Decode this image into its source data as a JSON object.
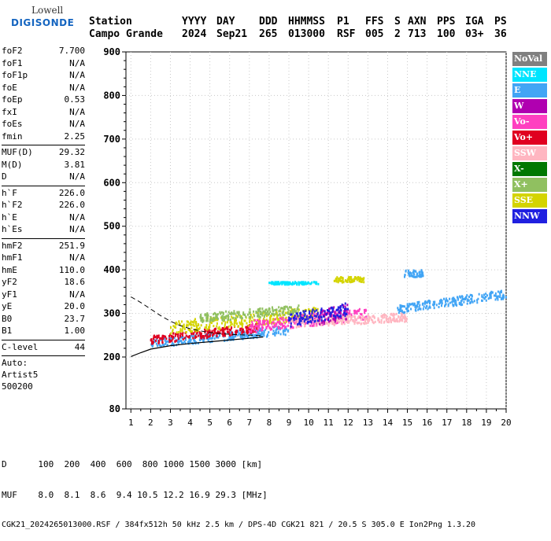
{
  "logo": {
    "top": "Lowell",
    "bottom": "DIGISONDE"
  },
  "header": {
    "labels": [
      "Station",
      "YYYY",
      "DAY",
      "DDD",
      "HHMMSS",
      "P1",
      "FFS",
      "S",
      "AXN",
      "PPS",
      "IGA",
      "PS"
    ],
    "values": [
      "Campo Grande",
      "2024",
      "Sep21",
      "265",
      "013000",
      "RSF",
      "005",
      "2",
      "713",
      "100",
      "03+",
      "36"
    ]
  },
  "params": [
    {
      "k": "foF2",
      "v": "7.700"
    },
    {
      "k": "foF1",
      "v": "N/A"
    },
    {
      "k": "foF1p",
      "v": "N/A"
    },
    {
      "k": "foE",
      "v": "N/A"
    },
    {
      "k": "foEp",
      "v": "0.53"
    },
    {
      "k": "fxI",
      "v": "N/A"
    },
    {
      "k": "foEs",
      "v": "N/A"
    },
    {
      "k": "fmin",
      "v": "2.25"
    },
    {
      "sep": true
    },
    {
      "k": "MUF(D)",
      "v": "29.32"
    },
    {
      "k": "M(D)",
      "v": "3.81"
    },
    {
      "k": "D",
      "v": "N/A"
    },
    {
      "sep": true
    },
    {
      "k": "h`F",
      "v": "226.0"
    },
    {
      "k": "h`F2",
      "v": "226.0"
    },
    {
      "k": "h`E",
      "v": "N/A"
    },
    {
      "k": "h`Es",
      "v": "N/A"
    },
    {
      "sep": true
    },
    {
      "k": "hmF2",
      "v": "251.9"
    },
    {
      "k": "hmF1",
      "v": "N/A"
    },
    {
      "k": "hmE",
      "v": "110.0"
    },
    {
      "k": "yF2",
      "v": "18.6"
    },
    {
      "k": "yF1",
      "v": "N/A"
    },
    {
      "k": "yE",
      "v": "20.0"
    },
    {
      "k": "B0",
      "v": "23.7"
    },
    {
      "k": "B1",
      "v": "1.00"
    },
    {
      "sep": true
    },
    {
      "k": "C-level",
      "v": "44"
    },
    {
      "sep": true
    },
    {
      "line": "Auto:"
    },
    {
      "line": "Artist5"
    },
    {
      "line": "500200"
    }
  ],
  "legend": [
    {
      "label": "NoVal",
      "color": "#808080"
    },
    {
      "label": "NNE",
      "color": "#00e5ff"
    },
    {
      "label": "E",
      "color": "#42a5f5"
    },
    {
      "label": "W",
      "color": "#b000b0"
    },
    {
      "label": "Vo-",
      "color": "#ff40c0"
    },
    {
      "label": "Vo+",
      "color": "#e00020"
    },
    {
      "label": "SSW",
      "color": "#ffb6c1"
    },
    {
      "label": "X-",
      "color": "#007800"
    },
    {
      "label": "X+",
      "color": "#90c060"
    },
    {
      "label": "SSE",
      "color": "#d4d400"
    },
    {
      "label": "NNW",
      "color": "#2020e0"
    }
  ],
  "footer": {
    "row1_label": "D",
    "distances": [
      "100",
      "200",
      "400",
      "600",
      "800",
      "1000",
      "1500",
      "3000"
    ],
    "row1_unit": "[km]",
    "row2_label": "MUF",
    "mufs": [
      "8.0",
      "8.1",
      "8.6",
      "9.4",
      "10.5",
      "12.2",
      "16.9",
      "29.3"
    ],
    "row2_unit": "[MHz]",
    "info": "CGK21_2024265013000.RSF / 384fx512h 50 kHz 2.5 km / DPS-4D CGK21 821 / 20.5 S 305.0 E Ion2Png 1.3.20"
  },
  "chart_data": {
    "type": "scatter",
    "title": "",
    "xlabel": "",
    "ylabel": "",
    "xlim": [
      0.75,
      20
    ],
    "ylim": [
      80,
      900
    ],
    "xticks": [
      1,
      2,
      3,
      4,
      5,
      6,
      7,
      8,
      9,
      10,
      11,
      12,
      13,
      14,
      15,
      16,
      17,
      18,
      19,
      20
    ],
    "yticks": [
      80,
      200,
      300,
      400,
      500,
      600,
      700,
      800,
      900
    ],
    "grid": true,
    "legend_position": "right",
    "echo_bands": [
      {
        "name": "E",
        "x_range": [
          2.0,
          9.0
        ],
        "h_start": 232,
        "h_end": 262,
        "spread": 10
      },
      {
        "name": "Vo+",
        "x_range": [
          2.0,
          7.5
        ],
        "h_start": 240,
        "h_end": 268,
        "spread": 10
      },
      {
        "name": "SSE",
        "x_range": [
          3.0,
          10.5
        ],
        "h_start": 268,
        "h_end": 302,
        "spread": 14
      },
      {
        "name": "Vo-",
        "x_range": [
          7.0,
          13.0
        ],
        "h_start": 270,
        "h_end": 300,
        "spread": 14
      },
      {
        "name": "SSW",
        "x_range": [
          9.0,
          15.0
        ],
        "h_start": 278,
        "h_end": 292,
        "spread": 10
      },
      {
        "name": "E",
        "x_range": [
          14.5,
          20.0
        ],
        "h_start": 310,
        "h_end": 345,
        "spread": 10
      },
      {
        "name": "NNE",
        "x_range": [
          8.0,
          10.5
        ],
        "h_start": 370,
        "h_end": 370,
        "spread": 3
      },
      {
        "name": "SSE",
        "x_range": [
          11.3,
          12.8
        ],
        "h_start": 378,
        "h_end": 378,
        "spread": 6
      },
      {
        "name": "E",
        "x_range": [
          14.8,
          15.8
        ],
        "h_start": 392,
        "h_end": 392,
        "spread": 8
      },
      {
        "name": "W",
        "x_range": [
          10.5,
          12.0
        ],
        "h_start": 290,
        "h_end": 305,
        "spread": 18
      },
      {
        "name": "X+",
        "x_range": [
          4.5,
          9.5
        ],
        "h_start": 290,
        "h_end": 310,
        "spread": 10
      },
      {
        "name": "NNW",
        "x_range": [
          9.0,
          12.0
        ],
        "h_start": 285,
        "h_end": 310,
        "spread": 15
      }
    ],
    "dashed_profile": [
      [
        1.0,
        338
      ],
      [
        1.5,
        325
      ],
      [
        2.0,
        310
      ],
      [
        2.5,
        295
      ],
      [
        3.0,
        282
      ],
      [
        3.5,
        272
      ],
      [
        4.0,
        265
      ],
      [
        4.5,
        260
      ],
      [
        5.0,
        256
      ],
      [
        6.0,
        252
      ],
      [
        7.0,
        250
      ],
      [
        7.7,
        249
      ]
    ],
    "solid_profile": [
      [
        1.0,
        201
      ],
      [
        1.5,
        210
      ],
      [
        2.0,
        218
      ],
      [
        3.0,
        226
      ],
      [
        4.0,
        231
      ],
      [
        5.0,
        235
      ],
      [
        6.0,
        239
      ],
      [
        7.0,
        243
      ],
      [
        7.7,
        246
      ]
    ]
  }
}
